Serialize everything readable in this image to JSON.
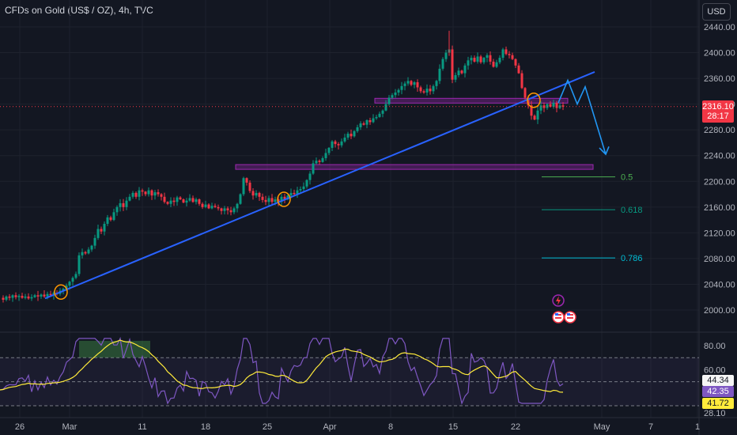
{
  "header": {
    "title": "CFDs on Gold (US$ / OZ), 4h, TVC",
    "currency": "USD"
  },
  "price_tag": {
    "price": "2316.10",
    "countdown": "28:17"
  },
  "chart_data": {
    "type": "candlestick",
    "title": "CFDs on Gold (US$ / OZ), 4h, TVC",
    "price_axis": {
      "min": 2000,
      "max": 2440,
      "ticks": [
        "2440.00",
        "2400.00",
        "2360.00",
        "2320.00",
        "2280.00",
        "2240.00",
        "2200.00",
        "2160.00",
        "2120.00",
        "2080.00",
        "2040.00",
        "2000.00"
      ],
      "values": [
        2440,
        2400,
        2360,
        2320,
        2280,
        2240,
        2200,
        2160,
        2120,
        2080,
        2040,
        2000
      ]
    },
    "time_axis": {
      "labels": [
        "26",
        "Mar",
        "11",
        "18",
        "25",
        "Apr",
        "8",
        "15",
        "22",
        "May",
        "7",
        "1"
      ]
    },
    "current_price": 2316.1,
    "price_path": [
      [
        0,
        2019
      ],
      [
        4,
        2016
      ],
      [
        8,
        2021
      ],
      [
        12,
        2019
      ],
      [
        16,
        2023
      ],
      [
        20,
        2020
      ],
      [
        24,
        2022
      ],
      [
        28,
        2019
      ],
      [
        32,
        2021
      ],
      [
        36,
        2018
      ],
      [
        40,
        2020
      ],
      [
        44,
        2023
      ],
      [
        48,
        2021
      ],
      [
        52,
        2024
      ],
      [
        56,
        2021
      ],
      [
        60,
        2025
      ],
      [
        64,
        2023
      ],
      [
        68,
        2027
      ],
      [
        72,
        2025
      ],
      [
        76,
        2030
      ],
      [
        80,
        2033
      ],
      [
        84,
        2038
      ],
      [
        88,
        2044
      ],
      [
        92,
        2050
      ],
      [
        96,
        2056
      ],
      [
        100,
        2085
      ],
      [
        104,
        2090
      ],
      [
        108,
        2088
      ],
      [
        112,
        2094
      ],
      [
        116,
        2100
      ],
      [
        120,
        2112
      ],
      [
        124,
        2126
      ],
      [
        128,
        2122
      ],
      [
        132,
        2134
      ],
      [
        136,
        2144
      ],
      [
        140,
        2140
      ],
      [
        144,
        2152
      ],
      [
        148,
        2160
      ],
      [
        152,
        2166
      ],
      [
        156,
        2160
      ],
      [
        160,
        2170
      ],
      [
        164,
        2176
      ],
      [
        168,
        2182
      ],
      [
        172,
        2176
      ],
      [
        176,
        2186
      ],
      [
        180,
        2184
      ],
      [
        184,
        2180
      ],
      [
        188,
        2186
      ],
      [
        192,
        2178
      ],
      [
        196,
        2183
      ],
      [
        200,
        2180
      ],
      [
        204,
        2176
      ],
      [
        208,
        2168
      ],
      [
        212,
        2165
      ],
      [
        216,
        2170
      ],
      [
        220,
        2168
      ],
      [
        224,
        2175
      ],
      [
        228,
        2172
      ],
      [
        232,
        2167
      ],
      [
        236,
        2170
      ],
      [
        240,
        2174
      ],
      [
        244,
        2168
      ],
      [
        248,
        2172
      ],
      [
        252,
        2165
      ],
      [
        256,
        2160
      ],
      [
        260,
        2164
      ],
      [
        264,
        2158
      ],
      [
        268,
        2162
      ],
      [
        272,
        2160
      ],
      [
        276,
        2158
      ],
      [
        280,
        2154
      ],
      [
        284,
        2158
      ],
      [
        288,
        2155
      ],
      [
        292,
        2152
      ],
      [
        296,
        2158
      ],
      [
        300,
        2165
      ],
      [
        304,
        2180
      ],
      [
        308,
        2205
      ],
      [
        312,
        2198
      ],
      [
        316,
        2185
      ],
      [
        320,
        2178
      ],
      [
        324,
        2182
      ],
      [
        328,
        2176
      ],
      [
        332,
        2171
      ],
      [
        336,
        2168
      ],
      [
        340,
        2174
      ],
      [
        344,
        2168
      ],
      [
        348,
        2172
      ],
      [
        352,
        2168
      ],
      [
        356,
        2176
      ],
      [
        360,
        2172
      ],
      [
        364,
        2178
      ],
      [
        368,
        2182
      ],
      [
        372,
        2180
      ],
      [
        376,
        2186
      ],
      [
        380,
        2188
      ],
      [
        384,
        2192
      ],
      [
        388,
        2202
      ],
      [
        392,
        2212
      ],
      [
        396,
        2228
      ],
      [
        400,
        2232
      ],
      [
        404,
        2230
      ],
      [
        408,
        2236
      ],
      [
        412,
        2244
      ],
      [
        416,
        2252
      ],
      [
        420,
        2262
      ],
      [
        424,
        2258
      ],
      [
        428,
        2256
      ],
      [
        432,
        2262
      ],
      [
        436,
        2268
      ],
      [
        440,
        2274
      ],
      [
        444,
        2270
      ],
      [
        448,
        2278
      ],
      [
        452,
        2284
      ],
      [
        456,
        2290
      ],
      [
        460,
        2288
      ],
      [
        464,
        2295
      ],
      [
        468,
        2292
      ],
      [
        472,
        2298
      ],
      [
        476,
        2300
      ],
      [
        480,
        2305
      ],
      [
        484,
        2310
      ],
      [
        488,
        2320
      ],
      [
        492,
        2330
      ],
      [
        496,
        2334
      ],
      [
        500,
        2338
      ],
      [
        504,
        2342
      ],
      [
        508,
        2348
      ],
      [
        512,
        2352
      ],
      [
        516,
        2356
      ],
      [
        520,
        2350
      ],
      [
        524,
        2354
      ],
      [
        528,
        2346
      ],
      [
        532,
        2340
      ],
      [
        536,
        2338
      ],
      [
        540,
        2344
      ],
      [
        544,
        2340
      ],
      [
        548,
        2348
      ],
      [
        552,
        2356
      ],
      [
        556,
        2375
      ],
      [
        560,
        2390
      ],
      [
        564,
        2400
      ],
      [
        568,
        2405
      ],
      [
        572,
        2358
      ],
      [
        576,
        2365
      ],
      [
        580,
        2372
      ],
      [
        584,
        2368
      ],
      [
        588,
        2380
      ],
      [
        592,
        2388
      ],
      [
        596,
        2392
      ],
      [
        600,
        2386
      ],
      [
        604,
        2394
      ],
      [
        608,
        2385
      ],
      [
        612,
        2392
      ],
      [
        616,
        2396
      ],
      [
        620,
        2386
      ],
      [
        624,
        2378
      ],
      [
        628,
        2385
      ],
      [
        632,
        2392
      ],
      [
        636,
        2405
      ],
      [
        640,
        2398
      ],
      [
        644,
        2396
      ],
      [
        648,
        2390
      ],
      [
        652,
        2380
      ],
      [
        656,
        2368
      ],
      [
        660,
        2345
      ],
      [
        664,
        2330
      ],
      [
        668,
        2318
      ],
      [
        672,
        2302
      ],
      [
        676,
        2296
      ],
      [
        680,
        2310
      ],
      [
        684,
        2318
      ],
      [
        688,
        2314
      ],
      [
        692,
        2320
      ],
      [
        696,
        2316
      ],
      [
        700,
        2322
      ],
      [
        704,
        2314
      ],
      [
        708,
        2318
      ],
      [
        712,
        2316
      ]
    ],
    "trendline": {
      "start": [
        "Feb 28",
        2018
      ],
      "end": [
        "May",
        2370
      ],
      "color": "#2962ff"
    },
    "zones": [
      {
        "from": [
          "Apr 8",
          2329
        ],
        "to": [
          "Apr 25",
          2322
        ],
        "color": "#9c27b0"
      },
      {
        "from": [
          "Mar 21",
          2226
        ],
        "to": [
          "May",
          2219
        ],
        "color": "#9c27b0"
      }
    ],
    "fib_levels": [
      {
        "label": "0.5",
        "price": 2207,
        "color": "#4caf50"
      },
      {
        "label": "0.618",
        "price": 2156,
        "color": "#089981"
      },
      {
        "label": "0.786",
        "price": 2081,
        "color": "#00bcd4"
      }
    ],
    "projection": {
      "color": "#2196f3",
      "path": [
        [
          0,
          2322
        ],
        [
          12,
          2355
        ],
        [
          22,
          2320
        ],
        [
          32,
          2345
        ],
        [
          60,
          2240
        ]
      ]
    },
    "markers": [
      "lightning-icon",
      "us-flag-event",
      "us-flag-event"
    ],
    "rsi": {
      "axis_labels": [
        "80.00",
        "60.00",
        "28.10"
      ],
      "axis_values": [
        80,
        60,
        28.1
      ],
      "upper_band": 70,
      "lower_band": 30,
      "mid": 50,
      "values": {
        "rsi": "42.35",
        "ma": "44.34",
        "other": "41.72"
      }
    }
  }
}
